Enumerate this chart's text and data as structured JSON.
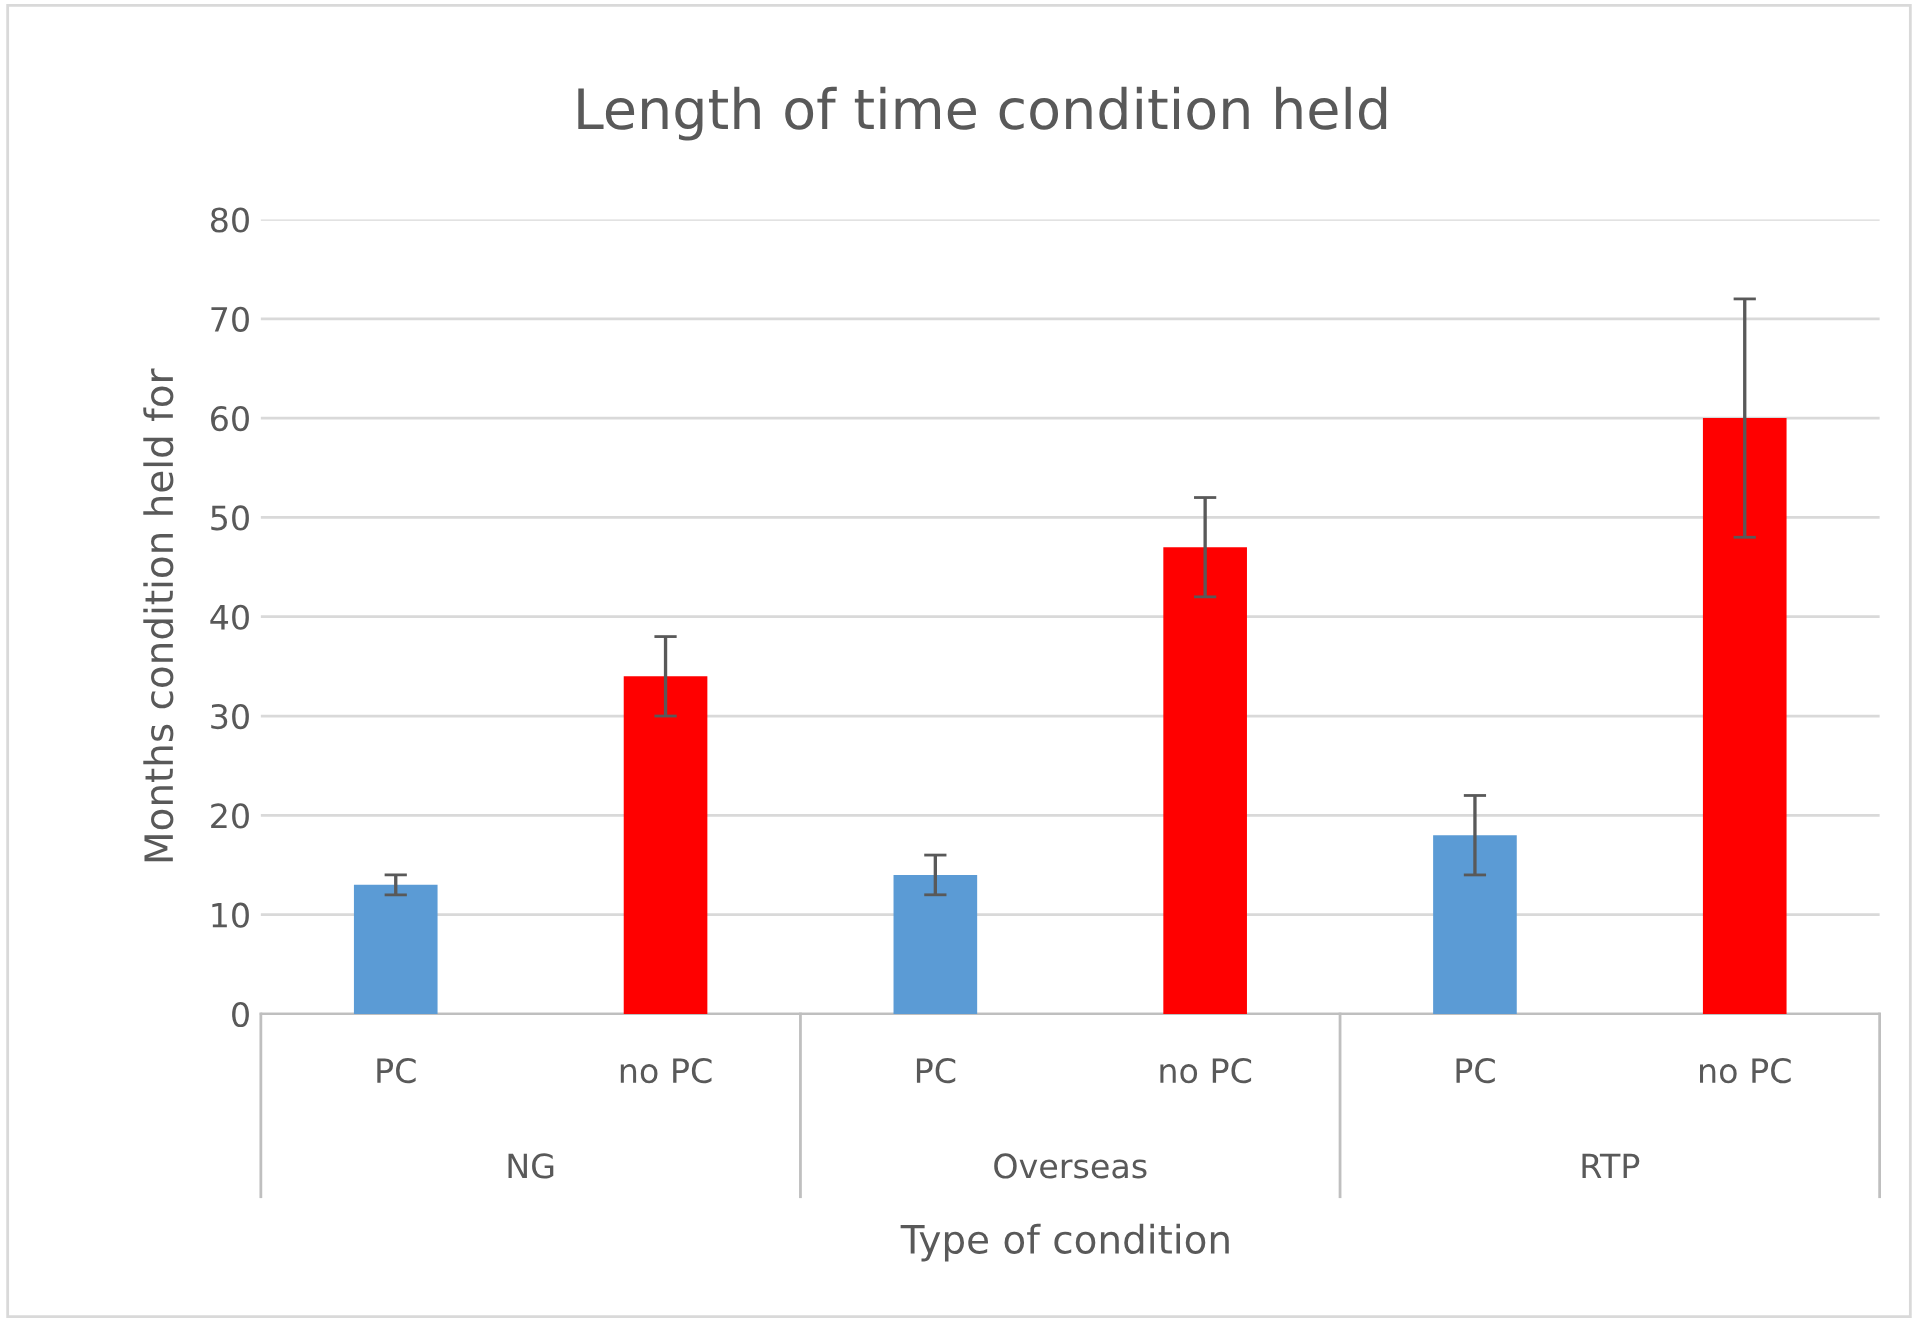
{
  "chart_data": {
    "type": "bar",
    "title": "Length of time condition held",
    "xlabel": "Type of condition",
    "ylabel": "Months condition held for",
    "categories": [
      "PC",
      "no PC",
      "PC",
      "no PC",
      "PC",
      "no PC"
    ],
    "values": [
      13,
      34,
      14,
      47,
      18,
      60
    ],
    "colors": [
      "#5b9bd5",
      "#ff0000",
      "#5b9bd5",
      "#ff0000",
      "#5b9bd5",
      "#ff0000"
    ],
    "errors": [
      1,
      4,
      2,
      5,
      4,
      12
    ],
    "annotations": [
      "NG",
      "Overseas",
      "RTP"
    ],
    "ylim": [
      0,
      80
    ],
    "yticks": [
      0,
      10,
      20,
      30,
      40,
      50,
      60,
      70,
      80
    ],
    "grid": "y",
    "legend": false
  }
}
